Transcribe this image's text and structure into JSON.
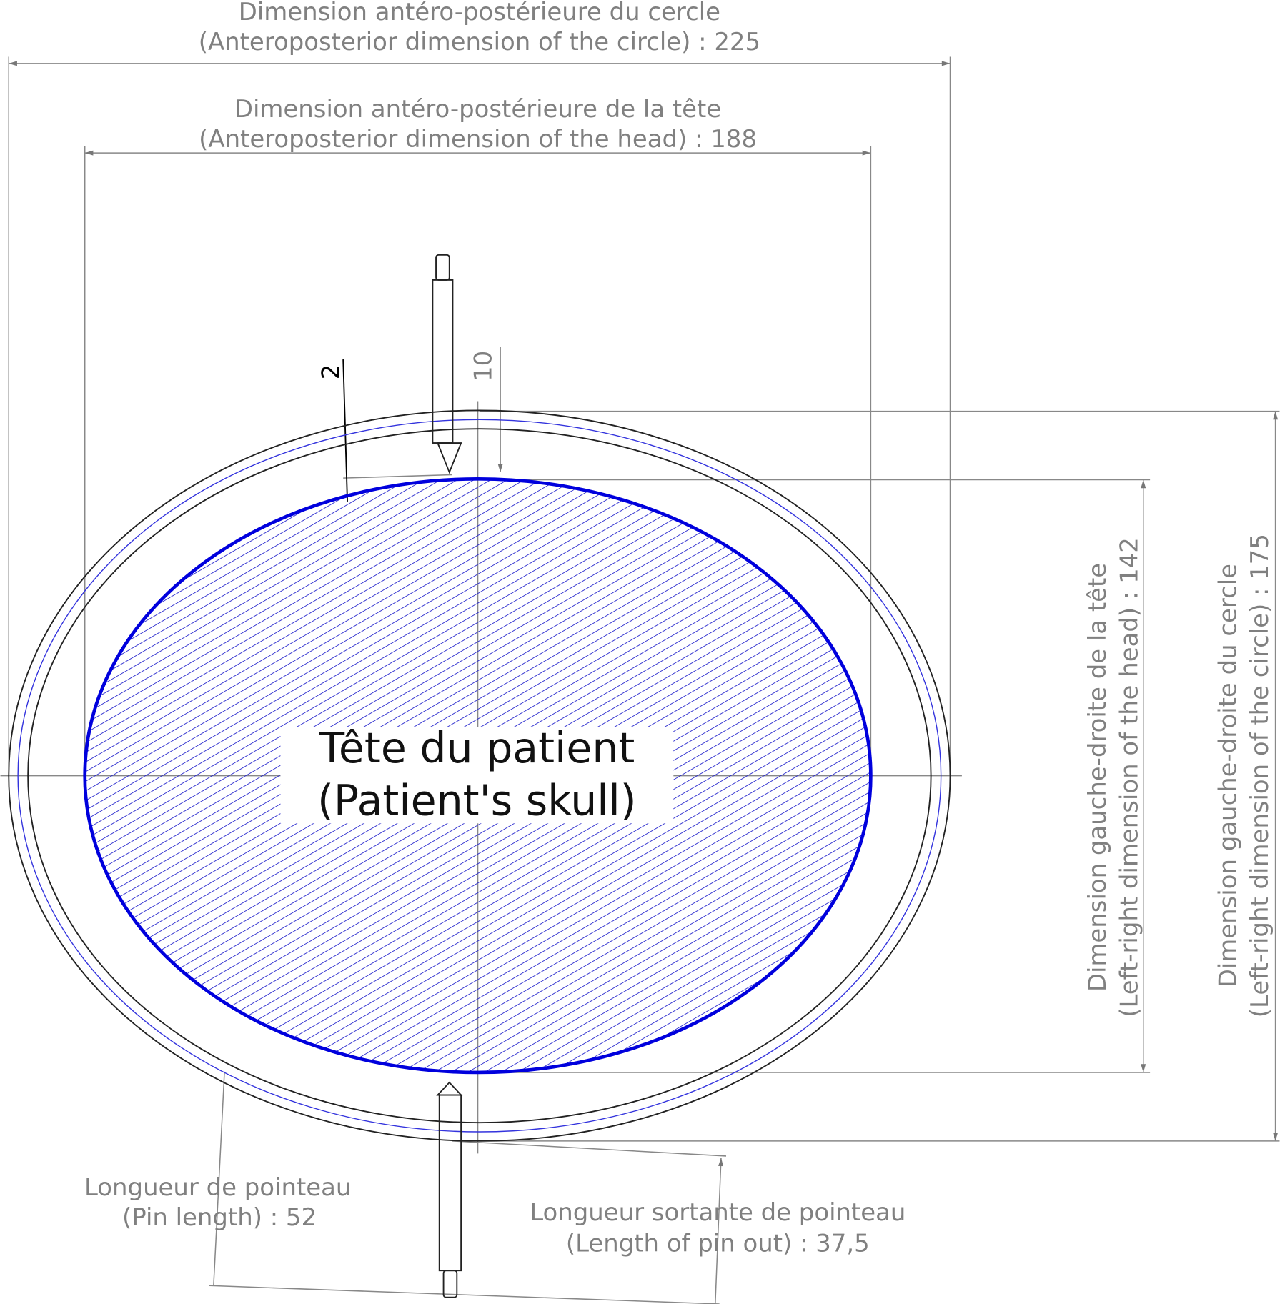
{
  "dimensions": {
    "ap_circle": [
      "Dimension antéro-postérieure du cercle",
      "(Anteroposterior dimension of the circle) : 225"
    ],
    "ap_head": [
      "Dimension antéro-postérieure de la tête",
      "(Anteroposterior dimension of the head) : 188"
    ],
    "lr_head": [
      "Dimension gauche-droite de la tête",
      "(Left-right dimension of the head) : 142"
    ],
    "lr_circle": [
      "Dimension gauche-droite du cercle",
      "(Left-right dimension of the circle) : 175"
    ],
    "gap": "2",
    "pin_offset": "10",
    "pin_length": [
      "Longueur de pointeau",
      "(Pin length) : 52"
    ],
    "pin_out": [
      "Longueur sortante de pointeau",
      "(Length of pin out) : 37,5"
    ]
  },
  "head_label": [
    "Tête du patient",
    "(Patient's skull)"
  ]
}
